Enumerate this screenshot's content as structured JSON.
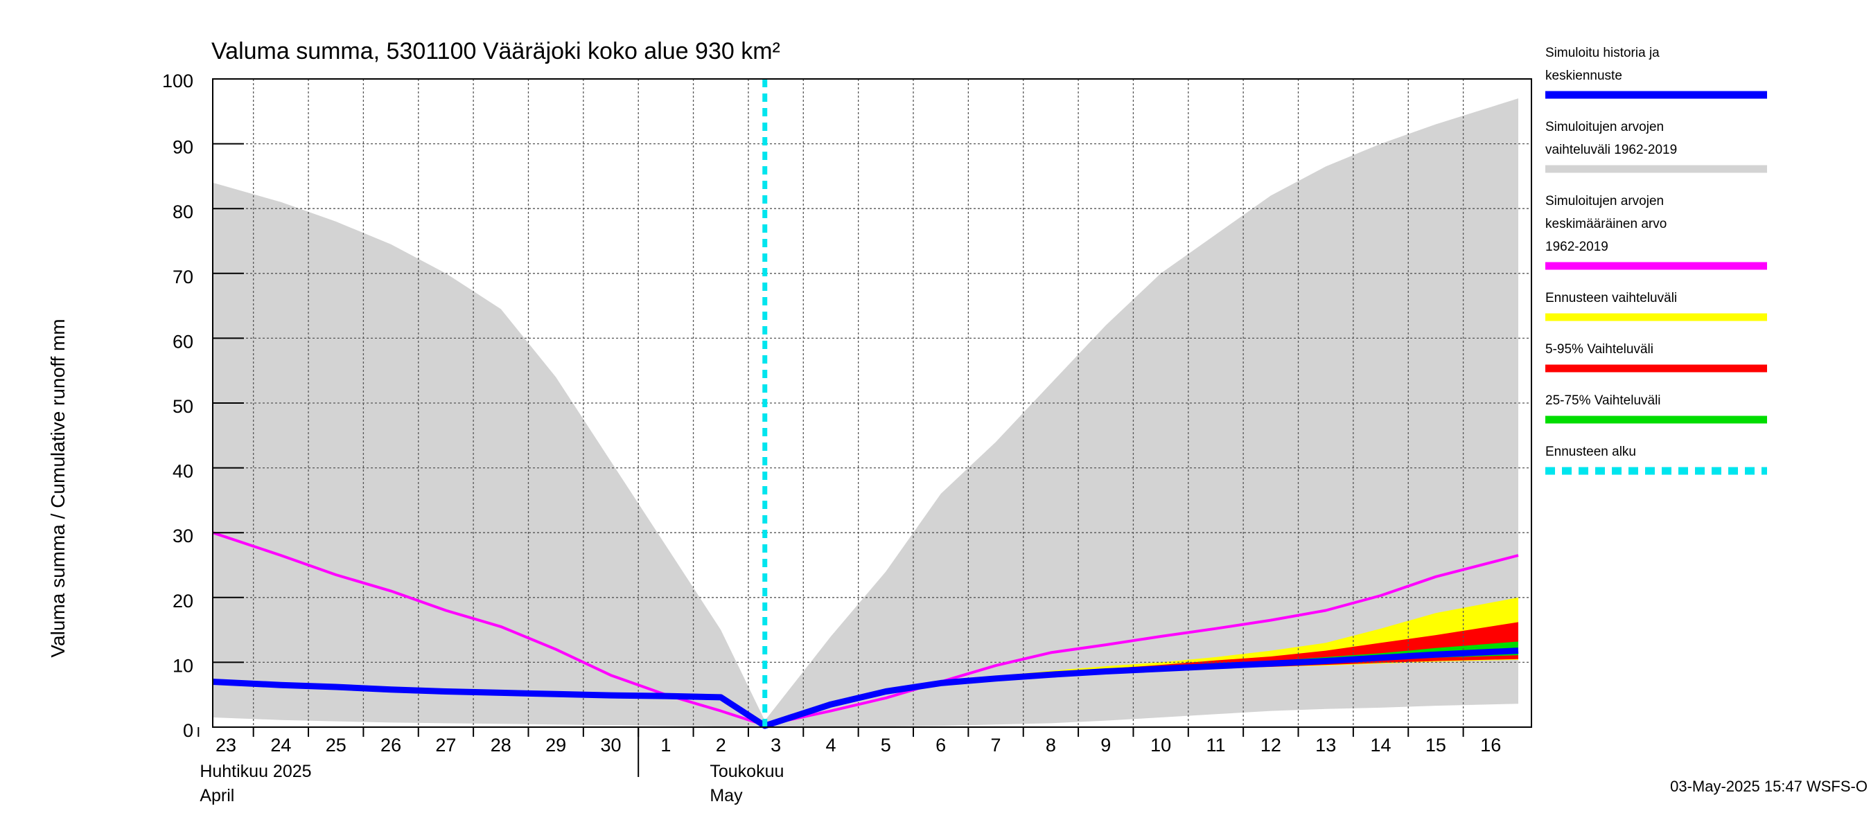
{
  "chart_data": {
    "type": "area",
    "title": "Valuma summa, 5301100 Vääräjoki koko alue 930 km²",
    "ylabel": "Valuma summa / Cumulative runoff    mm",
    "ylim": [
      0,
      100
    ],
    "yticks": [
      0,
      10,
      20,
      30,
      40,
      50,
      60,
      70,
      80,
      90,
      100
    ],
    "x_days": [
      "23",
      "24",
      "25",
      "26",
      "27",
      "28",
      "29",
      "30",
      "1",
      "2",
      "3",
      "4",
      "5",
      "6",
      "7",
      "8",
      "9",
      "10",
      "11",
      "12",
      "13",
      "14",
      "15",
      "16"
    ],
    "months": [
      {
        "fi": "Huhtikuu  2025",
        "en": "April"
      },
      {
        "fi": "Toukokuu",
        "en": "May"
      }
    ],
    "forecast_start_day": 9.8,
    "series": [
      {
        "name": "Simuloitujen arvojen vaihteluväli 1962-2019",
        "kind": "band",
        "color": "#d3d3d3",
        "x": [
          -0.5,
          1,
          2,
          3,
          4,
          5,
          6,
          7,
          8,
          9,
          9.8,
          11,
          12,
          13,
          14,
          15,
          16,
          17,
          18,
          19,
          20,
          21,
          22,
          23.5
        ],
        "low": [
          1.5,
          1.1,
          0.9,
          0.7,
          0.6,
          0.5,
          0.4,
          0.3,
          0.2,
          0.1,
          0.0,
          0.05,
          0.1,
          0.2,
          0.4,
          0.6,
          1.0,
          1.5,
          2.0,
          2.5,
          2.8,
          3.0,
          3.3,
          3.6
        ],
        "high": [
          84,
          81,
          78,
          74.5,
          70,
          64.5,
          54,
          41,
          28,
          15,
          1,
          14,
          24,
          36,
          44,
          53,
          62,
          70,
          76,
          82,
          86.5,
          90,
          93,
          97
        ]
      },
      {
        "name": "Ennusteen vaihteluväli",
        "kind": "band",
        "color": "#ffff00",
        "x": [
          9.8,
          11,
          12,
          13,
          14,
          15,
          16,
          17,
          18,
          19,
          20,
          21,
          22,
          23.5
        ],
        "low": [
          0.0,
          3.5,
          5.5,
          6.8,
          7.4,
          7.9,
          8.4,
          8.8,
          9.1,
          9.3,
          9.5,
          9.8,
          10.1,
          10.4
        ],
        "high": [
          0.0,
          3.5,
          5.5,
          6.8,
          7.9,
          8.7,
          9.4,
          10.0,
          10.8,
          11.8,
          13.0,
          15.2,
          17.6,
          20.0
        ]
      },
      {
        "name": "5-95% Vaihteluväli",
        "kind": "band",
        "color": "#ff0000",
        "x": [
          9.8,
          11,
          12,
          13,
          14,
          15,
          16,
          17,
          18,
          19,
          20,
          21,
          22,
          23.5
        ],
        "low": [
          0.0,
          3.5,
          5.5,
          6.8,
          7.4,
          7.9,
          8.4,
          8.8,
          9.1,
          9.3,
          9.6,
          9.9,
          10.2,
          10.5
        ],
        "high": [
          0.0,
          3.5,
          5.5,
          6.8,
          7.7,
          8.4,
          9.0,
          9.6,
          10.3,
          10.9,
          11.8,
          13.0,
          14.2,
          16.2
        ]
      },
      {
        "name": "25-75% Vaihteluväli",
        "kind": "band",
        "color": "#00dd00",
        "x": [
          9.8,
          11,
          12,
          13,
          14,
          15,
          16,
          17,
          18,
          19,
          20,
          21,
          22,
          23.5
        ],
        "low": [
          0.0,
          3.5,
          5.5,
          6.8,
          7.5,
          8.1,
          8.6,
          9.0,
          9.4,
          9.7,
          10.0,
          10.3,
          10.7,
          11.1
        ],
        "high": [
          0.0,
          3.5,
          5.5,
          6.8,
          7.6,
          8.3,
          8.8,
          9.3,
          9.7,
          10.2,
          10.8,
          11.4,
          12.2,
          13.2
        ]
      },
      {
        "name": "Simuloitujen arvojen keskimääräinen arvo 1962-2019",
        "kind": "line",
        "color": "#ff00ff",
        "x": [
          -0.5,
          1,
          2,
          3,
          4,
          5,
          6,
          7,
          8,
          9,
          9.8,
          11,
          12,
          13,
          14,
          15,
          16,
          17,
          18,
          19,
          20,
          21,
          22,
          23.5
        ],
        "values": [
          30,
          26.5,
          23.5,
          21,
          18,
          15.5,
          12,
          8,
          5,
          2.5,
          0.3,
          2.5,
          4.5,
          7,
          9.5,
          11.5,
          12.7,
          14,
          15.2,
          16.5,
          18,
          20.3,
          23.2,
          26.5
        ]
      },
      {
        "name": "Simuloitu historia ja keskiennuste",
        "kind": "line",
        "color": "#0000ff",
        "x": [
          -0.5,
          1,
          2,
          3,
          4,
          5,
          6,
          7,
          8,
          9,
          9.8,
          11,
          12,
          13,
          14,
          15,
          16,
          17,
          18,
          19,
          20,
          21,
          22,
          23.5
        ],
        "values": [
          7,
          6.5,
          6.2,
          5.8,
          5.5,
          5.3,
          5.1,
          4.9,
          4.8,
          4.6,
          0.2,
          3.5,
          5.5,
          6.8,
          7.5,
          8.1,
          8.6,
          9.0,
          9.4,
          9.8,
          10.2,
          10.7,
          11.2,
          11.8
        ]
      }
    ],
    "legend": [
      {
        "line1": "Simuloitu historia ja",
        "line2": "keskiennuste",
        "line3": "",
        "color": "#0000ff",
        "style": "solid"
      },
      {
        "line1": "Simuloitujen arvojen",
        "line2": "vaihteluväli 1962-2019",
        "line3": "",
        "color": "#d3d3d3",
        "style": "solid"
      },
      {
        "line1": "Simuloitujen arvojen",
        "line2": "keskimääräinen arvo",
        "line3": "   1962-2019",
        "color": "#ff00ff",
        "style": "solid"
      },
      {
        "line1": "Ennusteen vaihteluväli",
        "line2": "",
        "line3": "",
        "color": "#ffff00",
        "style": "solid"
      },
      {
        "line1": "5-95% Vaihteluväli",
        "line2": "",
        "line3": "",
        "color": "#ff0000",
        "style": "solid"
      },
      {
        "line1": "25-75% Vaihteluväli",
        "line2": "",
        "line3": "",
        "color": "#00dd00",
        "style": "solid"
      },
      {
        "line1": "Ennusteen alku",
        "line2": "",
        "line3": "",
        "color": "#00e5ee",
        "style": "dashed"
      }
    ],
    "timestamp": "03-May-2025 15:47 WSFS-O"
  }
}
